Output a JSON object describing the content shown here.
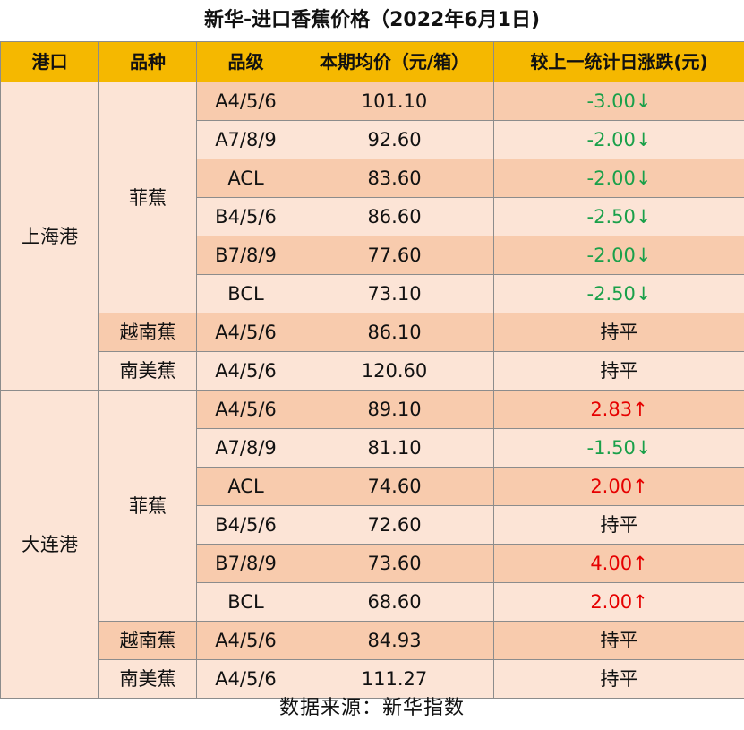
{
  "title": "新华-进口香蕉价格（2022年6月1日)",
  "headers": [
    "港口",
    "品种",
    "品级",
    "本期均价（元/箱）",
    "较上一统计日涨跌(元)"
  ],
  "ports": [
    {
      "name": "上海港",
      "varieties": [
        {
          "name": "菲蕉",
          "rows": [
            {
              "grade": "A4/5/6",
              "price": "101.10",
              "change": "-3.00↓",
              "direction": "down"
            },
            {
              "grade": "A7/8/9",
              "price": "92.60",
              "change": "-2.00↓",
              "direction": "down"
            },
            {
              "grade": "ACL",
              "price": "83.60",
              "change": "-2.00↓",
              "direction": "down"
            },
            {
              "grade": "B4/5/6",
              "price": "86.60",
              "change": "-2.50↓",
              "direction": "down"
            },
            {
              "grade": "B7/8/9",
              "price": "77.60",
              "change": "-2.00↓",
              "direction": "down"
            },
            {
              "grade": "BCL",
              "price": "73.10",
              "change": "-2.50↓",
              "direction": "down"
            }
          ]
        },
        {
          "name": "越南蕉",
          "rows": [
            {
              "grade": "A4/5/6",
              "price": "86.10",
              "change": "持平",
              "direction": "flat"
            }
          ]
        },
        {
          "name": "南美蕉",
          "rows": [
            {
              "grade": "A4/5/6",
              "price": "120.60",
              "change": "持平",
              "direction": "flat"
            }
          ]
        }
      ]
    },
    {
      "name": "大连港",
      "varieties": [
        {
          "name": "菲蕉",
          "rows": [
            {
              "grade": "A4/5/6",
              "price": "89.10",
              "change": "2.83↑",
              "direction": "up"
            },
            {
              "grade": "A7/8/9",
              "price": "81.10",
              "change": "-1.50↓",
              "direction": "down"
            },
            {
              "grade": "ACL",
              "price": "74.60",
              "change": "2.00↑",
              "direction": "up"
            },
            {
              "grade": "B4/5/6",
              "price": "72.60",
              "change": "持平",
              "direction": "flat"
            },
            {
              "grade": "B7/8/9",
              "price": "73.60",
              "change": "4.00↑",
              "direction": "up"
            },
            {
              "grade": "BCL",
              "price": "68.60",
              "change": "2.00↑",
              "direction": "up"
            }
          ]
        },
        {
          "name": "越南蕉",
          "rows": [
            {
              "grade": "A4/5/6",
              "price": "84.93",
              "change": "持平",
              "direction": "flat"
            }
          ]
        },
        {
          "name": "南美蕉",
          "rows": [
            {
              "grade": "A4/5/6",
              "price": "111.27",
              "change": "持平",
              "direction": "flat"
            }
          ]
        }
      ]
    }
  ],
  "source": "数据来源：新华指数",
  "colors": {
    "header_bg": "#f5b800",
    "row_dark": "#f8cbad",
    "row_light": "#fce4d6",
    "down": "#1aa04a",
    "up": "#e60000"
  }
}
